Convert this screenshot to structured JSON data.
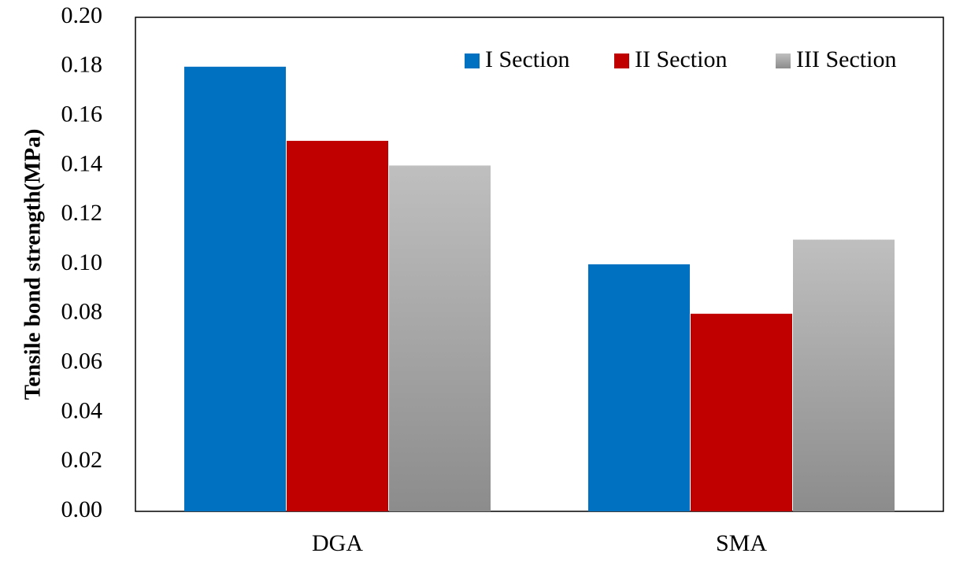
{
  "chart_data": {
    "type": "bar",
    "title": "",
    "xlabel": "",
    "ylabel": "Tensile bond strength(MPa)",
    "ylim": [
      0,
      0.2
    ],
    "yticks": [
      "0.00",
      "0.02",
      "0.04",
      "0.06",
      "0.08",
      "0.10",
      "0.12",
      "0.14",
      "0.16",
      "0.18",
      "0.20"
    ],
    "grid": false,
    "legend_position": "top-right",
    "categories": [
      "DGA",
      "SMA"
    ],
    "series": [
      {
        "name": "I Section",
        "values": [
          0.18,
          0.1
        ],
        "color": "#0070C0"
      },
      {
        "name": "II Section",
        "values": [
          0.15,
          0.08
        ],
        "color": "#C00000"
      },
      {
        "name": "III Section",
        "values": [
          0.14,
          0.11
        ],
        "color": "#A6A6A6",
        "gradient_bottom": "#8C8C8C",
        "gradient_top": "#BFBFBF"
      }
    ]
  }
}
